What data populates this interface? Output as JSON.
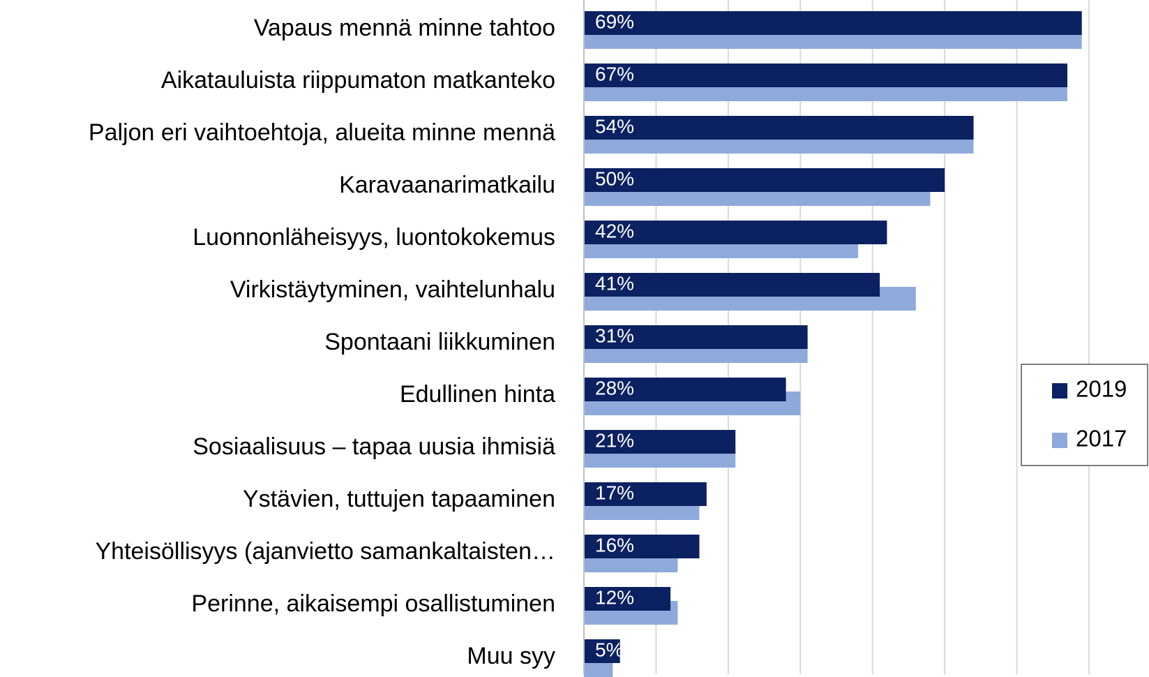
{
  "chart_data": {
    "type": "bar",
    "orientation": "horizontal",
    "categories": [
      "Vapaus mennä minne tahtoo",
      "Aikatauluista riippumaton matkanteko",
      "Paljon eri vaihtoehtoja, alueita minne mennä",
      "Karavaanarimatkailu",
      "Luonnonläheisyys, luontokokemus",
      "Virkistäytyminen, vaihtelunhalu",
      "Spontaani liikkuminen",
      "Edullinen hinta",
      "Sosiaalisuus – tapaa uusia ihmisiä",
      "Ystävien, tuttujen tapaaminen",
      "Yhteisöllisyys (ajanvietto samankaltaisten…",
      "Perinne, aikaisempi osallistuminen",
      "Muu syy"
    ],
    "series": [
      {
        "name": "2019",
        "color": "#0b2161",
        "values": [
          69,
          67,
          54,
          50,
          42,
          41,
          31,
          28,
          21,
          17,
          16,
          12,
          5
        ],
        "value_labels": [
          "69%",
          "67%",
          "54%",
          "50%",
          "42%",
          "41%",
          "31%",
          "28%",
          "21%",
          "17%",
          "16%",
          "12%",
          "5%"
        ]
      },
      {
        "name": "2017",
        "color": "#8eaadb",
        "values": [
          69,
          67,
          54,
          48,
          38,
          46,
          31,
          30,
          21,
          16,
          13,
          13,
          4
        ]
      }
    ],
    "xlim": [
      0,
      70
    ],
    "xticks": [
      0,
      10,
      20,
      30,
      40,
      50,
      60,
      70
    ],
    "grid": true,
    "legend": "right"
  }
}
